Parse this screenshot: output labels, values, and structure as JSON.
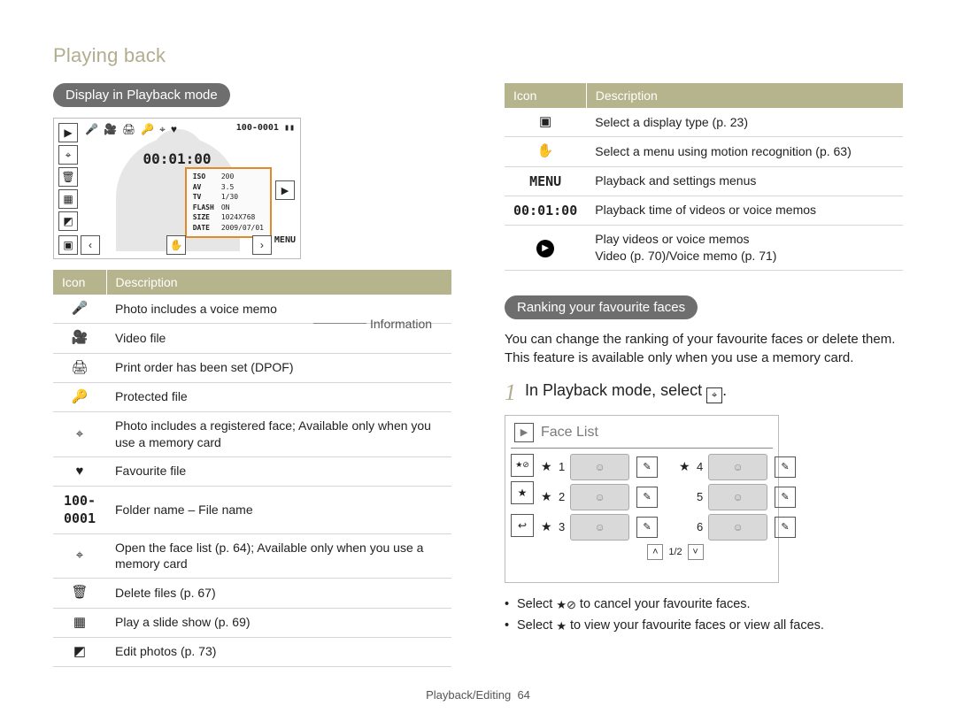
{
  "colors": {
    "olive": "#b6b48c",
    "olive_light": "#b0ae8e",
    "pill_bg": "#6e6e6e",
    "info_border": "#e08a2a",
    "rule": "#d6d6d6"
  },
  "page": {
    "title": "Playing back",
    "footer_section": "Playback/Editing",
    "footer_page": "64"
  },
  "left": {
    "pill": "Display in Playback mode",
    "info_label": "Information",
    "lcd": {
      "timer": "00:01:00",
      "folder_file": "100-0001",
      "info_rows": [
        {
          "k": "ISO",
          "v": "200"
        },
        {
          "k": "AV",
          "v": "3.5"
        },
        {
          "k": "TV",
          "v": "1/30"
        },
        {
          "k": "FLASH",
          "v": "ON"
        },
        {
          "k": "SIZE",
          "v": "1024X768"
        },
        {
          "k": "DATE",
          "v": "2009/07/01"
        }
      ],
      "menu_label": "MENU"
    },
    "table": {
      "headers": {
        "icon": "Icon",
        "desc": "Description"
      },
      "rows": [
        {
          "icon": "🎤",
          "desc": "Photo includes a voice memo"
        },
        {
          "icon": "🎥",
          "desc": "Video file"
        },
        {
          "icon": "🖨",
          "desc": "Print order has been set (DPOF)"
        },
        {
          "icon": "🔑",
          "klass": "key",
          "desc": "Protected file"
        },
        {
          "icon": "⌖",
          "klass": "face",
          "desc": "Photo includes a registered face; Available only when you use a memory card"
        },
        {
          "icon": "♥",
          "desc": "Favourite file"
        },
        {
          "icon": "100-0001",
          "klass": "mono",
          "desc": "Folder name – File name"
        },
        {
          "icon": "⌖",
          "klass": "facelist",
          "desc": "Open the face list (p. 64); Available only when you use a memory card"
        },
        {
          "icon": "🗑",
          "desc": "Delete files (p. 67)"
        },
        {
          "icon": "▦",
          "klass": "slide",
          "desc": "Play a slide show (p. 69)"
        },
        {
          "icon": "◩",
          "klass": "edit",
          "desc": "Edit photos (p. 73)"
        }
      ]
    }
  },
  "right": {
    "table": {
      "headers": {
        "icon": "Icon",
        "desc": "Description"
      },
      "rows": [
        {
          "icon": "▣",
          "desc": "Select a display type (p. 23)"
        },
        {
          "icon": "✋",
          "klass": "motion",
          "desc": "Select a menu using motion recognition (p. 63)"
        },
        {
          "icon": "MENU",
          "klass": "mono",
          "desc": "Playback and settings menus"
        },
        {
          "icon": "00:01:00",
          "klass": "mono",
          "desc": "Playback time of videos or voice memos"
        },
        {
          "icon": "▶",
          "klass": "play-circle",
          "desc": "Play videos or voice memos\nVideo (p. 70)/Voice memo (p. 71)"
        }
      ]
    },
    "pill": "Ranking your favourite faces",
    "intro": "You can change the ranking of your favourite faces or delete them. This feature is available only when you use a memory card.",
    "step": {
      "num": "1",
      "text_before": "In Playback mode, select ",
      "icon_name": "face-list-icon",
      "text_after": "."
    },
    "facelcd": {
      "title": "Face List",
      "pager": "1/2",
      "rows": [
        {
          "n": "1",
          "star": true
        },
        {
          "n": "4",
          "star": true
        },
        {
          "n": "2",
          "star": true
        },
        {
          "n": "5",
          "star": false
        },
        {
          "n": "3",
          "star": true
        },
        {
          "n": "6",
          "star": false
        }
      ]
    },
    "bullets": [
      {
        "pre": "Select ",
        "icon": "★⊘",
        "icon_name": "star-off-icon",
        "post": " to cancel your favourite faces."
      },
      {
        "pre": "Select ",
        "icon": "★",
        "icon_name": "star-icon",
        "post": " to view your favourite faces or view all faces."
      }
    ]
  }
}
